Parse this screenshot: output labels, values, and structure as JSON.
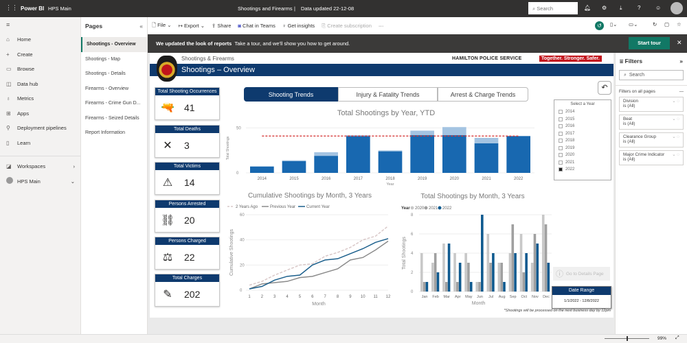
{
  "topbar": {
    "app": "Power BI",
    "workspace": "HPS Main",
    "report_title": "Shootings and Firearms",
    "data_updated": "Data updated 22-12-08",
    "search_placeholder": "Search"
  },
  "leftnav": {
    "items": [
      {
        "label": "Home",
        "icon": "⌂"
      },
      {
        "label": "Create",
        "icon": "+"
      },
      {
        "label": "Browse",
        "icon": "▭"
      },
      {
        "label": "Data hub",
        "icon": "◫"
      },
      {
        "label": "Metrics",
        "icon": "♁"
      },
      {
        "label": "Apps",
        "icon": "⊞"
      },
      {
        "label": "Deployment pipelines",
        "icon": "⚲"
      },
      {
        "label": "Learn",
        "icon": "▯"
      }
    ],
    "workspaces": "Workspaces",
    "hps": "HPS Main"
  },
  "pages": {
    "title": "Pages",
    "items": [
      "Shootings - Overview",
      "Shootings - Map",
      "Shootings - Details",
      "Firearms - Overview",
      "Firearms - Crime Gun D...",
      "Firearms - Seized Details",
      "Report Information"
    ],
    "active": 0
  },
  "toolbar": {
    "file": "File",
    "export": "Export",
    "share": "Share",
    "chat": "Chat in Teams",
    "insights": "Get insights",
    "subscription": "Create subscription",
    "more": "···"
  },
  "banner": {
    "bold": "We updated the look of reports",
    "text": "Take a tour, and we'll show you how to get around.",
    "button": "Start tour"
  },
  "report": {
    "supertitle": "Shootings & Firearms",
    "title": "Shootings – Overview",
    "brand": "HAMILTON POLICE SERVICE",
    "tagline": "Together. Stronger. Safer.",
    "tabs": [
      "Shooting Trends",
      "Injury & Fatality Trends",
      "Arrest & Charge Trends"
    ],
    "active_tab": 0,
    "kpis": [
      {
        "label": "Total Shooting Occurrences",
        "value": "41",
        "icon": "🔫"
      },
      {
        "label": "Total Deaths",
        "value": "3",
        "icon": "✕"
      },
      {
        "label": "Total Victims",
        "value": "14",
        "icon": "⚠"
      },
      {
        "label": "Persons Arrested",
        "value": "20",
        "icon": "⛓"
      },
      {
        "label": "Persons Charged",
        "value": "22",
        "icon": "⚖"
      },
      {
        "label": "Total Charges",
        "value": "202",
        "icon": "✎"
      }
    ],
    "slicer": {
      "title": "Select a Year",
      "options": [
        "2014",
        "2015",
        "2016",
        "2017",
        "2018",
        "2019",
        "2020",
        "2021",
        "2022"
      ],
      "selected": "2022"
    },
    "details_button": "Go to Details Page",
    "date_range_title": "Date Range",
    "date_range": "1/1/2022 - 12/8/2022",
    "footnote": "*Shootings will be processed on the next business day by 12pm"
  },
  "filters": {
    "title": "Filters",
    "search": "Search",
    "section": "Filters on all pages",
    "cards": [
      {
        "name": "Division",
        "value": "is (All)"
      },
      {
        "name": "Beat",
        "value": "is (All)"
      },
      {
        "name": "Clearance Group",
        "value": "is (All)"
      },
      {
        "name": "Major Crime Indicator",
        "value": "is (All)"
      }
    ]
  },
  "statusbar": {
    "zoom": "99%"
  },
  "chart_data": [
    {
      "type": "bar",
      "title": "Total Shootings by Year, YTD",
      "xlabel": "Year",
      "ylabel": "Total Shootings",
      "ylim": [
        0,
        55
      ],
      "yticks": [
        0,
        50
      ],
      "categories": [
        "2014",
        "2015",
        "2016",
        "2017",
        "2018",
        "2019",
        "2020",
        "2021",
        "2022"
      ],
      "series": [
        {
          "values": [
            7,
            13,
            19,
            41,
            24,
            42,
            42,
            33,
            41
          ],
          "color": "#1868b0"
        },
        {
          "values": [
            0.5,
            1,
            4,
            1,
            1,
            5,
            9,
            6,
            0
          ],
          "color": "#a4c4e2"
        }
      ],
      "reference_line": 41,
      "reference_color": "#d63a3a"
    },
    {
      "type": "line",
      "title": "Cumulative Shootings by Month, 3 Years",
      "xlabel": "Month",
      "ylabel": "Cumulative Shootings",
      "ylim": [
        0,
        60
      ],
      "yticks": [
        0,
        20,
        40,
        60
      ],
      "x": [
        1,
        2,
        3,
        4,
        5,
        6,
        7,
        8,
        9,
        10,
        11,
        12
      ],
      "series": [
        {
          "name": "2 Years Ago",
          "values": [
            4,
            7,
            12,
            16,
            20,
            21,
            27,
            30,
            34,
            40,
            43,
            51
          ],
          "color": "#d9c8c8",
          "dash": true
        },
        {
          "name": "Previous Year",
          "values": [
            1,
            5,
            6,
            7,
            10,
            11,
            14,
            17,
            24,
            26,
            32,
            39
          ],
          "color": "#8a8a8a"
        },
        {
          "name": "Current Year",
          "values": [
            1,
            3,
            8,
            11,
            12,
            20,
            24,
            25,
            29,
            33,
            38,
            41
          ],
          "color": "#1b5f8c"
        }
      ]
    },
    {
      "type": "bar",
      "title": "Total Shootings by Month, 3 Years",
      "xlabel": "Month",
      "ylabel": "Total Shootings",
      "legend_title": "Year",
      "ylim": [
        0,
        8
      ],
      "yticks": [
        0,
        2,
        4,
        6,
        8
      ],
      "categories": [
        "Jan",
        "Feb",
        "Mar",
        "Apr",
        "May",
        "Jun",
        "Jul",
        "Aug",
        "Sep",
        "Oct",
        "Nov",
        "Dec"
      ],
      "series": [
        {
          "name": "2020",
          "values": [
            4,
            3,
            5,
            4,
            4,
            1,
            6,
            3,
            4,
            6,
            3,
            8
          ],
          "color": "#c8c8c8"
        },
        {
          "name": "2021",
          "values": [
            1,
            4,
            1,
            1,
            3,
            1,
            3,
            3,
            7,
            2,
            6,
            7
          ],
          "color": "#a0a0a0"
        },
        {
          "name": "2022",
          "values": [
            1,
            2,
            5,
            3,
            1,
            8,
            4,
            1,
            4,
            4,
            5,
            3
          ],
          "color": "#0f5a8f"
        }
      ]
    }
  ]
}
